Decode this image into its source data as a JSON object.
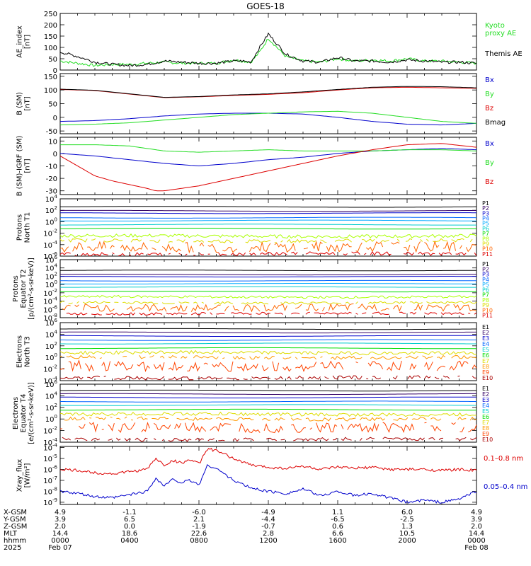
{
  "title": "GOES-18",
  "colors": {
    "black": "#000000",
    "green": "#22dd22",
    "blue": "#0000cc",
    "red": "#dd0000",
    "p_colors": [
      "#000000",
      "#330066",
      "#0000cc",
      "#0066ff",
      "#00aaff",
      "#00cccc",
      "#00dd00",
      "#aaff00",
      "#dddd00",
      "#ff6600",
      "#dd0000"
    ],
    "e_colors": [
      "#000000",
      "#330066",
      "#0000cc",
      "#0066ff",
      "#00cccc",
      "#00dd00",
      "#dddd00",
      "#ff9900",
      "#ff4400",
      "#aa0000"
    ]
  },
  "chart_data": [
    {
      "type": "line",
      "panel": "ae",
      "ylabel": "AE_index\n[nT]",
      "yticks": [
        "250",
        "200",
        "150",
        "100",
        "50",
        "0"
      ],
      "ylim": [
        0,
        250
      ],
      "series": [
        {
          "name": "Kyoto\nproxy AE",
          "color": "green",
          "x": [
            0,
            1,
            2,
            3,
            4,
            5,
            6,
            7,
            8,
            9,
            10,
            10.5,
            11,
            11.5,
            12,
            13,
            14,
            15,
            16,
            17,
            18,
            19,
            20,
            21,
            22,
            23,
            24
          ],
          "values": [
            40,
            30,
            20,
            25,
            25,
            30,
            35,
            30,
            30,
            30,
            45,
            40,
            35,
            80,
            140,
            60,
            40,
            35,
            50,
            40,
            45,
            40,
            50,
            40,
            40,
            35,
            30
          ]
        },
        {
          "name": "Themis AE",
          "color": "black",
          "x": [
            0,
            1,
            2,
            3,
            4,
            5,
            6,
            7,
            8,
            9,
            10,
            10.5,
            11,
            11.5,
            12,
            13,
            14,
            15,
            16,
            17,
            18,
            19,
            20,
            21,
            22,
            23,
            24
          ],
          "values": [
            80,
            60,
            35,
            25,
            20,
            25,
            40,
            35,
            30,
            30,
            40,
            40,
            35,
            100,
            160,
            70,
            40,
            35,
            55,
            40,
            40,
            35,
            45,
            40,
            35,
            35,
            30
          ]
        }
      ]
    },
    {
      "type": "line",
      "panel": "bsm",
      "ylabel": "B (SM)\n[nT]",
      "yticks": [
        "150",
        "100",
        "50",
        "0",
        "-50"
      ],
      "ylim": [
        -60,
        160
      ],
      "series": [
        {
          "name": "Bx",
          "color": "blue",
          "x": [
            0,
            2,
            4,
            6,
            8,
            10,
            12,
            14,
            16,
            18,
            20,
            22,
            24
          ],
          "values": [
            -15,
            -12,
            -5,
            5,
            12,
            15,
            15,
            12,
            0,
            -15,
            -25,
            -28,
            -22
          ]
        },
        {
          "name": "By",
          "color": "green",
          "x": [
            0,
            2,
            4,
            6,
            8,
            10,
            12,
            14,
            16,
            18,
            20,
            22,
            24
          ],
          "values": [
            -28,
            -25,
            -20,
            -10,
            0,
            10,
            15,
            20,
            22,
            15,
            0,
            -15,
            -22
          ]
        },
        {
          "name": "Bz",
          "color": "red",
          "x": [
            0,
            2,
            4,
            6,
            8,
            10,
            12,
            14,
            16,
            18,
            20,
            22,
            24
          ],
          "values": [
            102,
            98,
            85,
            72,
            75,
            80,
            84,
            90,
            100,
            108,
            110,
            108,
            106
          ]
        },
        {
          "name": "Bmag",
          "color": "black",
          "x": [
            0,
            2,
            4,
            6,
            8,
            10,
            12,
            14,
            16,
            18,
            20,
            22,
            24
          ],
          "values": [
            103,
            99,
            86,
            73,
            76,
            82,
            86,
            93,
            102,
            110,
            113,
            112,
            108
          ]
        }
      ]
    },
    {
      "type": "line",
      "panel": "dbsm",
      "ylabel": "B (SM)-IGRF (SM)\n[nT]",
      "yticks": [
        "10",
        "0",
        "-10",
        "-20",
        "-30"
      ],
      "ylim": [
        -33,
        13
      ],
      "series": [
        {
          "name": "Bx",
          "color": "blue",
          "x": [
            0,
            2,
            4,
            6,
            8,
            10,
            12,
            14,
            16,
            18,
            20,
            22,
            24
          ],
          "values": [
            0,
            -2,
            -5,
            -8,
            -10,
            -8,
            -5,
            -3,
            0,
            2,
            3,
            4,
            3
          ]
        },
        {
          "name": "By",
          "color": "green",
          "x": [
            0,
            2,
            4,
            6,
            8,
            10,
            12,
            14,
            16,
            18,
            20,
            22,
            24
          ],
          "values": [
            7,
            7,
            6,
            2,
            1,
            2,
            3,
            2,
            2,
            2,
            3,
            3,
            2
          ]
        },
        {
          "name": "Bz",
          "color": "red",
          "x": [
            0,
            1,
            2,
            3,
            4,
            5,
            5.5,
            6,
            8,
            10,
            12,
            14,
            16,
            18,
            20,
            22,
            24
          ],
          "values": [
            -2,
            -10,
            -18,
            -22,
            -25,
            -28,
            -30,
            -30,
            -26,
            -20,
            -14,
            -8,
            -2,
            3,
            7,
            8,
            5
          ]
        }
      ]
    },
    {
      "type": "line",
      "panel": "p1",
      "log": true,
      "ylabel": "Protons\nNorth T1",
      "yticks": [
        "4",
        "2",
        "0",
        "-2",
        "-4",
        "-6"
      ],
      "ylim": [
        -6,
        4
      ],
      "series": [
        {
          "name": "P1",
          "values": [
            2.6
          ]
        },
        {
          "name": "P2",
          "values": [
            1.9
          ]
        },
        {
          "name": "P3",
          "values": [
            1.5
          ]
        },
        {
          "name": "P4",
          "values": [
            0.7
          ]
        },
        {
          "name": "P5",
          "values": [
            0.2
          ]
        },
        {
          "name": "P6",
          "values": [
            -0.5
          ]
        },
        {
          "name": "P7",
          "values": [
            -1.2
          ]
        },
        {
          "name": "P8",
          "values": [
            -2.5
          ]
        },
        {
          "name": "P9",
          "values": [
            -3.3
          ]
        },
        {
          "name": "P10",
          "values": [
            -4.4
          ]
        },
        {
          "name": "P11",
          "values": [
            -5.6
          ]
        }
      ]
    },
    {
      "type": "line",
      "panel": "p2",
      "log": true,
      "ylabel": "Protons\nEquator T2\n[p/(cm²-s-sr-keV)]",
      "yticks": [
        "6",
        "4",
        "2",
        "0",
        "-2",
        "-4",
        "-6",
        "-8"
      ],
      "ylim": [
        -8,
        6
      ],
      "series": [
        {
          "name": "P1",
          "values": [
            3.4
          ]
        },
        {
          "name": "P2",
          "values": [
            2.4
          ]
        },
        {
          "name": "P3",
          "values": [
            1.9
          ]
        },
        {
          "name": "P4",
          "values": [
            0.9
          ]
        },
        {
          "name": "P5",
          "values": [
            0.2
          ]
        },
        {
          "name": "P6",
          "values": [
            -0.6
          ]
        },
        {
          "name": "P7",
          "values": [
            -1.7
          ]
        },
        {
          "name": "P8",
          "values": [
            -3.0
          ]
        },
        {
          "name": "P9",
          "values": [
            -4.4
          ]
        },
        {
          "name": "P10",
          "values": [
            -5.6
          ]
        },
        {
          "name": "P11",
          "values": [
            -7.0
          ]
        }
      ]
    },
    {
      "type": "line",
      "panel": "e1",
      "log": true,
      "ylabel": "Electrons\nNorth T3",
      "yticks": [
        "6",
        "4",
        "2",
        "0",
        "-2",
        "-4"
      ],
      "ylim": [
        -4,
        6
      ],
      "series": [
        {
          "name": "E1",
          "values": [
            4.9
          ]
        },
        {
          "name": "E2",
          "values": [
            4.3
          ]
        },
        {
          "name": "E3",
          "values": [
            3.7
          ]
        },
        {
          "name": "E4",
          "values": [
            3.0
          ]
        },
        {
          "name": "E5",
          "values": [
            2.4
          ]
        },
        {
          "name": "E6",
          "values": [
            1.6
          ]
        },
        {
          "name": "E7",
          "values": [
            0.8
          ]
        },
        {
          "name": "E8",
          "values": [
            0.0
          ]
        },
        {
          "name": "E9",
          "values": [
            -1.5
          ]
        },
        {
          "name": "E10",
          "values": [
            -3.5
          ]
        }
      ]
    },
    {
      "type": "line",
      "panel": "e2",
      "log": true,
      "ylabel": "Electrons\nEquator T4\n[e/(cm²-s-sr-keV)]",
      "yticks": [
        "6",
        "4",
        "2",
        "0",
        "-2",
        "-4"
      ],
      "ylim": [
        -4,
        6
      ],
      "series": [
        {
          "name": "E1",
          "values": [
            4.9
          ]
        },
        {
          "name": "E2",
          "values": [
            4.3
          ]
        },
        {
          "name": "E3",
          "values": [
            3.7
          ]
        },
        {
          "name": "E4",
          "values": [
            3.0
          ]
        },
        {
          "name": "E5",
          "values": [
            2.4
          ]
        },
        {
          "name": "E6",
          "values": [
            1.6
          ]
        },
        {
          "name": "E7",
          "values": [
            0.8
          ]
        },
        {
          "name": "E8",
          "values": [
            0.0
          ]
        },
        {
          "name": "E9",
          "values": [
            -1.5
          ]
        },
        {
          "name": "E10",
          "values": [
            -3.5
          ]
        }
      ]
    },
    {
      "type": "line",
      "panel": "xray",
      "log": true,
      "ylabel": "Xray_flux\n[W/m²]",
      "yticks": [
        "-4",
        "-5",
        "-6",
        "-7",
        "-8",
        "-9"
      ],
      "ylim": [
        -9.2,
        -3.9
      ],
      "series": [
        {
          "name": "0.1–0.8 nm",
          "color": "red",
          "x": [
            0,
            1,
            2,
            3,
            4,
            5,
            5.5,
            6,
            6.5,
            7,
            7.5,
            8,
            8.5,
            9,
            10,
            11,
            12,
            13,
            14,
            15,
            16,
            17,
            18,
            19,
            20,
            21,
            22,
            23,
            24
          ],
          "values": [
            -6.0,
            -6.1,
            -6.3,
            -6.4,
            -6.2,
            -6.0,
            -5.0,
            -5.6,
            -5.2,
            -5.4,
            -5.1,
            -5.5,
            -4.1,
            -4.3,
            -5.0,
            -5.6,
            -5.8,
            -5.9,
            -5.7,
            -6.0,
            -5.8,
            -5.9,
            -5.8,
            -6.0,
            -6.0,
            -6.0,
            -6.1,
            -6.0,
            -6.1
          ]
        },
        {
          "name": "0.05–0.4 nm",
          "color": "blue",
          "x": [
            0,
            1,
            2,
            3,
            4,
            5,
            5.5,
            6,
            6.5,
            7,
            7.5,
            8,
            8.5,
            9,
            10,
            11,
            12,
            13,
            14,
            15,
            16,
            17,
            18,
            19,
            20,
            21,
            22,
            23,
            24
          ],
          "values": [
            -8.0,
            -8.2,
            -8.5,
            -8.6,
            -8.3,
            -8.0,
            -6.8,
            -7.5,
            -6.9,
            -7.2,
            -7.0,
            -7.4,
            -5.6,
            -5.9,
            -7.0,
            -7.7,
            -8.0,
            -8.2,
            -7.8,
            -8.4,
            -8.0,
            -8.4,
            -8.2,
            -8.6,
            -9.0,
            -8.8,
            -9.0,
            -8.7,
            -8.0
          ]
        }
      ]
    }
  ],
  "x_axis": {
    "rows": [
      {
        "label": "X-GSM",
        "values": [
          "4.9",
          "-1.1",
          "-6.0",
          "-4.9",
          "1.1",
          "6.0",
          "4.9"
        ]
      },
      {
        "label": "Y-GSM",
        "values": [
          "3.9",
          "6.5",
          "2.1",
          "-4.4",
          "-6.5",
          "-2.5",
          "3.9"
        ]
      },
      {
        "label": "Z-GSM",
        "values": [
          "2.0",
          "0.0",
          "-1.9",
          "-0.7",
          "0.6",
          "1.3",
          "2.0"
        ]
      },
      {
        "label": "MLT",
        "values": [
          "14.4",
          "18.6",
          "22.6",
          "2.8",
          "6.6",
          "10.5",
          "14.4"
        ]
      },
      {
        "label": "hhmm",
        "values": [
          "0000",
          "0400",
          "0800",
          "1200",
          "1600",
          "2000",
          "0000"
        ]
      },
      {
        "label": "2025",
        "values": [
          "Feb 07",
          "",
          "",
          "",
          "",
          "",
          "Feb 08"
        ]
      }
    ]
  }
}
